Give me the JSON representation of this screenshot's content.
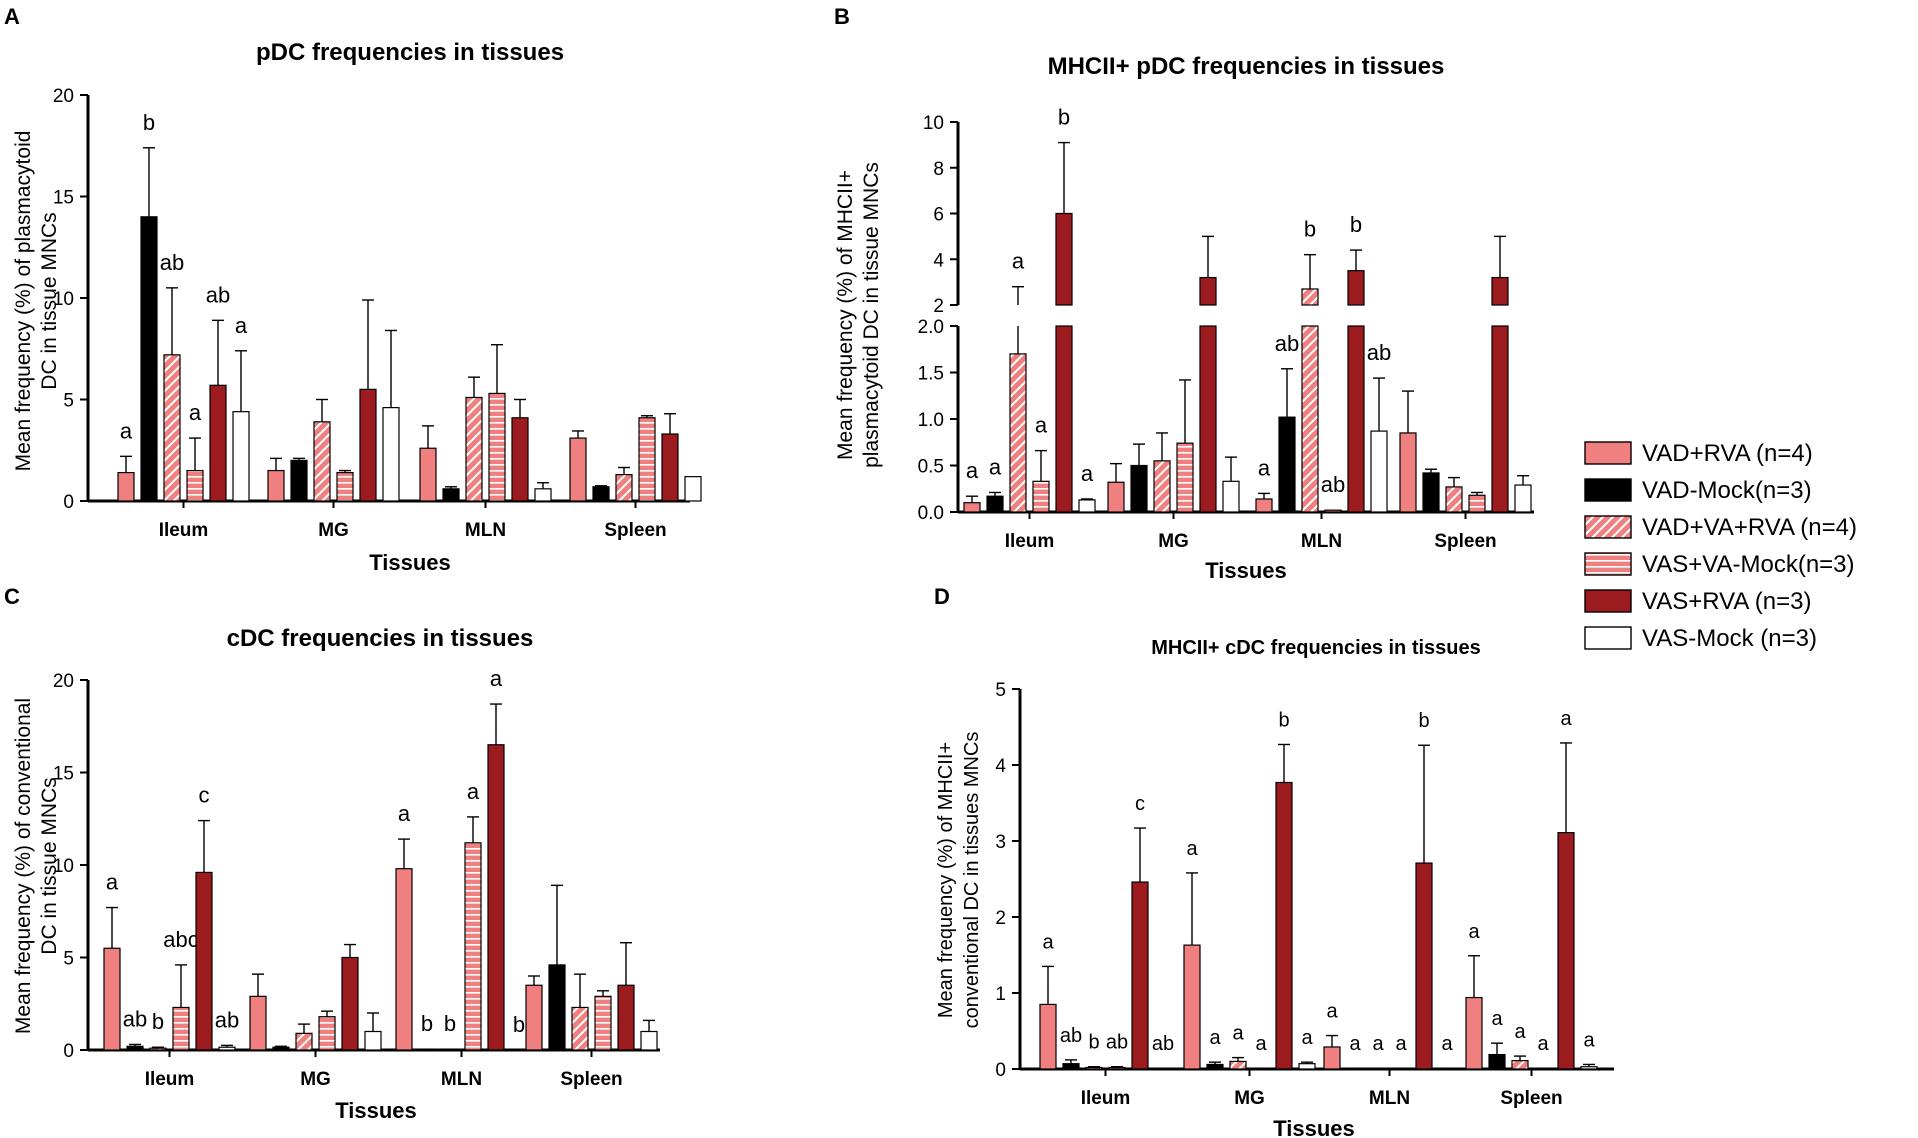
{
  "legend": {
    "entries": [
      "VAD+RVA (n=4)",
      "VAD-Mock(n=3)",
      "VAD+VA+RVA (n=4)",
      "VAS+VA-Mock(n=3)",
      "VAS+RVA (n=3)",
      "VAS-Mock (n=3)"
    ],
    "colors": [
      "#f08080",
      "#000000",
      "#f08080",
      "#f08080",
      "#9b1b1f",
      "#ffffff"
    ],
    "patterns": [
      "solid",
      "solid",
      "diagonal",
      "horizontal",
      "solid",
      "solid"
    ],
    "placement": "right"
  },
  "chart_data": [
    {
      "panel": "A",
      "type": "bar",
      "title": "pDC frequencies in tissues",
      "xlabel": "Tissues",
      "ylabel_lines": [
        "Mean frequency (%) of plasmacytoid",
        "DC in tissue MNCs"
      ],
      "categories": [
        "Ileum",
        "MG",
        "MLN",
        "Spleen"
      ],
      "ylim": [
        0,
        20
      ],
      "yticks": [
        0,
        5,
        10,
        15,
        20
      ],
      "series": [
        {
          "name": "VAD+RVA (n=4)",
          "values": [
            1.4,
            1.5,
            2.6,
            3.1
          ],
          "errors": [
            0.8,
            0.6,
            1.1,
            0.35
          ]
        },
        {
          "name": "VAD-Mock(n=3)",
          "values": [
            14.0,
            2.0,
            0.6,
            0.7
          ],
          "errors": [
            3.4,
            0.1,
            0.1,
            0.05
          ]
        },
        {
          "name": "VAD+VA+RVA (n=4)",
          "values": [
            7.2,
            3.9,
            5.1,
            1.3
          ],
          "errors": [
            3.3,
            1.1,
            1.0,
            0.35
          ]
        },
        {
          "name": "VAS+VA-Mock(n=3)",
          "values": [
            1.5,
            1.4,
            5.3,
            4.1
          ],
          "errors": [
            1.6,
            0.1,
            2.4,
            0.1
          ]
        },
        {
          "name": "VAS+RVA (n=3)",
          "values": [
            5.7,
            5.5,
            4.1,
            3.3
          ],
          "errors": [
            3.2,
            4.4,
            0.9,
            1.0
          ]
        },
        {
          "name": "VAS-Mock (n=3)",
          "values": [
            4.4,
            4.6,
            0.6,
            1.2
          ],
          "errors": [
            3.0,
            3.8,
            0.3,
            0.0
          ]
        }
      ],
      "annotations": [
        [
          "a",
          "b",
          "ab",
          "a",
          "ab",
          "a"
        ],
        [
          "",
          "",
          "",
          "",
          "",
          ""
        ],
        [
          "",
          "",
          "",
          "",
          "",
          ""
        ],
        [
          "",
          "",
          "",
          "",
          "",
          ""
        ]
      ]
    },
    {
      "panel": "B",
      "type": "bar",
      "title": "MHCII+ pDC frequencies in tissues",
      "xlabel": "Tissues",
      "ylabel_lines": [
        "Mean frequency (%) of MHCII+",
        "plasmacytoid DC in tissue MNCs"
      ],
      "categories": [
        "Ileum",
        "MG",
        "MLN",
        "Spleen"
      ],
      "ylim_lower": [
        0,
        2.0
      ],
      "yticks_lower": [
        0.0,
        0.5,
        1.0,
        1.5,
        2.0
      ],
      "ytick_labels_lower": [
        "0.0",
        "0.5",
        "1.0",
        "1.5",
        "2.0"
      ],
      "ylim_upper": [
        2,
        10
      ],
      "yticks_upper": [
        2,
        4,
        6,
        8,
        10
      ],
      "series": [
        {
          "name": "VAD+RVA (n=4)",
          "values": [
            0.1,
            0.32,
            0.14,
            0.85
          ],
          "errors": [
            0.07,
            0.2,
            0.06,
            0.45
          ]
        },
        {
          "name": "VAD-Mock(n=3)",
          "values": [
            0.17,
            0.5,
            1.02,
            0.42
          ],
          "errors": [
            0.04,
            0.23,
            0.52,
            0.04
          ]
        },
        {
          "name": "VAD+VA+RVA (n=4)",
          "values": [
            1.7,
            0.55,
            2.7,
            0.27
          ],
          "errors": [
            1.1,
            0.3,
            1.5,
            0.1
          ]
        },
        {
          "name": "VAS+VA-Mock(n=3)",
          "values": [
            0.33,
            0.74,
            0.02,
            0.18
          ],
          "errors": [
            0.33,
            0.68,
            0.0,
            0.03
          ]
        },
        {
          "name": "VAS+RVA (n=3)",
          "values": [
            6.0,
            3.2,
            3.5,
            3.2
          ],
          "errors": [
            3.1,
            1.8,
            0.9,
            1.8
          ]
        },
        {
          "name": "VAS-Mock (n=3)",
          "values": [
            0.13,
            0.33,
            0.87,
            0.29
          ],
          "errors": [
            0.01,
            0.26,
            0.57,
            0.1
          ]
        }
      ],
      "annotations": [
        [
          "a",
          "a",
          "a",
          "a",
          "b",
          "a"
        ],
        [
          "",
          "",
          "",
          "",
          "",
          ""
        ],
        [
          "a",
          "ab",
          "b",
          "ab",
          "b",
          "ab"
        ],
        [
          "",
          "",
          "",
          "",
          "",
          ""
        ]
      ]
    },
    {
      "panel": "C",
      "type": "bar",
      "title": "cDC frequencies in tissues",
      "xlabel": "Tissues",
      "ylabel_lines": [
        "Mean frequency (%) of conventional",
        "DC in tissue MNCs"
      ],
      "categories": [
        "Ileum",
        "MG",
        "MLN",
        "Spleen"
      ],
      "ylim": [
        0,
        20
      ],
      "yticks": [
        0,
        5,
        10,
        15,
        20
      ],
      "series": [
        {
          "name": "VAD+RVA (n=4)",
          "values": [
            5.5,
            2.9,
            9.8,
            3.5
          ],
          "errors": [
            2.2,
            1.2,
            1.6,
            0.5
          ]
        },
        {
          "name": "VAD-Mock(n=3)",
          "values": [
            0.2,
            0.15,
            0.05,
            4.6
          ],
          "errors": [
            0.1,
            0.05,
            0.0,
            4.3
          ]
        },
        {
          "name": "VAD+VA+RVA (n=4)",
          "values": [
            0.1,
            0.9,
            0.05,
            2.3
          ],
          "errors": [
            0.05,
            0.5,
            0.0,
            1.8
          ]
        },
        {
          "name": "VAS+VA-Mock(n=3)",
          "values": [
            2.3,
            1.8,
            11.2,
            2.9
          ],
          "errors": [
            2.3,
            0.3,
            1.4,
            0.3
          ]
        },
        {
          "name": "VAS+RVA (n=3)",
          "values": [
            9.6,
            5.0,
            16.5,
            3.5
          ],
          "errors": [
            2.8,
            0.7,
            2.2,
            2.3
          ]
        },
        {
          "name": "VAS-Mock (n=3)",
          "values": [
            0.15,
            1.0,
            0.0,
            1.0
          ],
          "errors": [
            0.1,
            1.0,
            0.0,
            0.6
          ]
        }
      ],
      "annotations": [
        [
          "a",
          "ab",
          "b",
          "abc",
          "c",
          "ab"
        ],
        [
          "",
          "",
          "",
          "",
          "",
          ""
        ],
        [
          "a",
          "b",
          "b",
          "a",
          "a",
          "b"
        ],
        [
          "",
          "",
          "",
          "",
          "",
          ""
        ]
      ]
    },
    {
      "panel": "D",
      "type": "bar",
      "title": "MHCII+ cDC frequencies in tissues",
      "xlabel": "Tissues",
      "ylabel_lines": [
        "Mean frequency (%) of MHCII+",
        "conventional DC in tissues MNCs"
      ],
      "categories": [
        "Ileum",
        "MG",
        "MLN",
        "Spleen"
      ],
      "ylim": [
        0,
        5
      ],
      "yticks": [
        0,
        1,
        2,
        3,
        4,
        5
      ],
      "series": [
        {
          "name": "VAD+RVA (n=4)",
          "values": [
            0.85,
            1.63,
            0.29,
            0.94
          ],
          "errors": [
            0.5,
            0.95,
            0.15,
            0.55
          ]
        },
        {
          "name": "VAD-Mock(n=3)",
          "values": [
            0.07,
            0.06,
            0.01,
            0.19
          ],
          "errors": [
            0.05,
            0.03,
            0.0,
            0.15
          ]
        },
        {
          "name": "VAD+VA+RVA (n=4)",
          "values": [
            0.02,
            0.1,
            0.01,
            0.11
          ],
          "errors": [
            0.01,
            0.05,
            0.0,
            0.06
          ]
        },
        {
          "name": "VAS+VA-Mock(n=3)",
          "values": [
            0.02,
            0.01,
            0.01,
            0.01
          ],
          "errors": [
            0.01,
            0.0,
            0.0,
            0.0
          ]
        },
        {
          "name": "VAS+RVA (n=3)",
          "values": [
            2.46,
            3.77,
            2.71,
            3.11
          ],
          "errors": [
            0.71,
            0.5,
            1.55,
            1.18
          ]
        },
        {
          "name": "VAS-Mock (n=3)",
          "values": [
            0.01,
            0.07,
            0.01,
            0.03
          ],
          "errors": [
            0.0,
            0.02,
            0.0,
            0.03
          ]
        }
      ],
      "annotations": [
        [
          "a",
          "ab",
          "b",
          "ab",
          "c",
          "ab"
        ],
        [
          "a",
          "a",
          "a",
          "a",
          "b",
          "a"
        ],
        [
          "a",
          "a",
          "a",
          "a",
          "b",
          "a"
        ],
        [
          "a",
          "a",
          "a",
          "a",
          "a",
          "a"
        ]
      ]
    }
  ]
}
